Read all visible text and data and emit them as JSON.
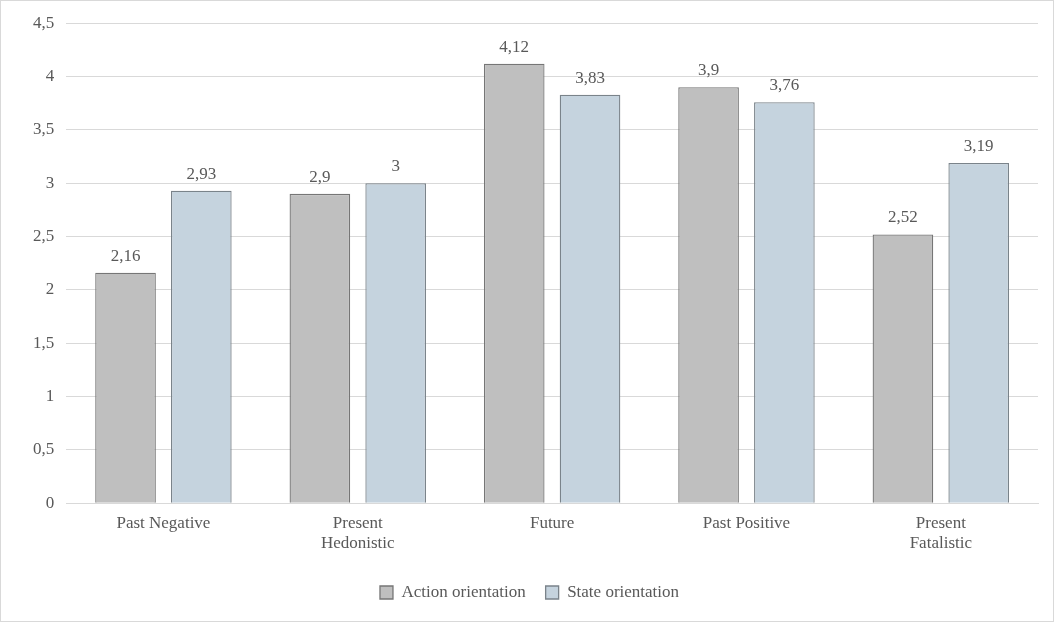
{
  "chart_data": {
    "type": "bar",
    "categories": [
      "Past Negative",
      "Present Hedonistic",
      "Future",
      "Past Positive",
      "Present Fatalistic"
    ],
    "series": [
      {
        "name": "Action orientation",
        "color": "#bfbfbf",
        "values": [
          2.16,
          2.9,
          4.12,
          3.9,
          2.52
        ],
        "value_labels": [
          "2,16",
          "2,9",
          "4,12",
          "3,9",
          "2,52"
        ]
      },
      {
        "name": "State orientation",
        "color": "#c5d3de",
        "values": [
          2.93,
          3,
          3.83,
          3.76,
          3.19
        ],
        "value_labels": [
          "2,93",
          "3",
          "3,83",
          "3,76",
          "3,19"
        ]
      }
    ],
    "ylim": [
      0,
      4.5
    ],
    "yticks": [
      {
        "value": 0,
        "label": "0"
      },
      {
        "value": 0.5,
        "label": "0,5"
      },
      {
        "value": 1,
        "label": "1"
      },
      {
        "value": 1.5,
        "label": "1,5"
      },
      {
        "value": 2,
        "label": "2"
      },
      {
        "value": 2.5,
        "label": "2,5"
      },
      {
        "value": 3,
        "label": "3"
      },
      {
        "value": 3.5,
        "label": "3,5"
      },
      {
        "value": 4,
        "label": "4"
      },
      {
        "value": 4.5,
        "label": "4,5"
      }
    ],
    "grid": "y",
    "legend": "bottom"
  }
}
